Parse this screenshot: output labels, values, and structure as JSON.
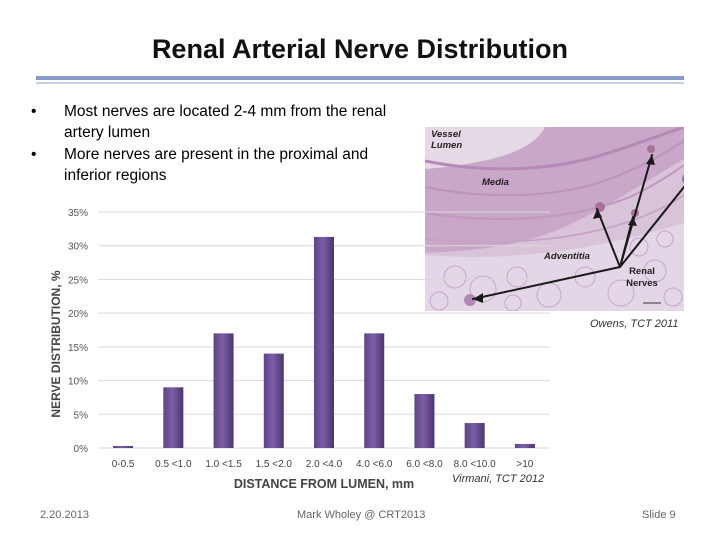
{
  "slide": {
    "title": "Renal Arterial Nerve Distribution",
    "bullets": [
      "Most nerves are located 2-4 mm from the renal artery lumen",
      "More nerves are present in the proximal and inferior regions"
    ],
    "bullet_glyph": "•"
  },
  "micrograph": {
    "labels": {
      "vessel_lumen": "Vessel Lumen",
      "media": "Media",
      "adventitia": "Adventitia",
      "renal_nerves": "Renal Nerves"
    },
    "credit": "Owens, TCT 2011"
  },
  "chart_data": {
    "type": "bar",
    "categories": [
      "0-0.5",
      "0.5 <1.0",
      "1.0 <1.5",
      "1.5 <2.0",
      "2.0 <4.0",
      "4.0 <6.0",
      "6.0 <8.0",
      "8.0 <10.0",
      ">10"
    ],
    "values": [
      0.3,
      9,
      17,
      14,
      31.3,
      17,
      8,
      3.7,
      0.6
    ],
    "xlabel": "DISTANCE FROM LUMEN, mm",
    "ylabel": "NERVE DISTRIBUTION, %",
    "ylim": [
      0,
      35
    ],
    "yticks": [
      "0%",
      "5%",
      "10%",
      "15%",
      "20%",
      "25%",
      "30%",
      "35%"
    ],
    "bar_color": "#7c5ea6",
    "grid": true,
    "credit": "Virmani, TCT 2012"
  },
  "footer": {
    "date": "2.20.2013",
    "center": "Mark Wholey @ CRT2013",
    "slide_number": "Slide 9"
  }
}
